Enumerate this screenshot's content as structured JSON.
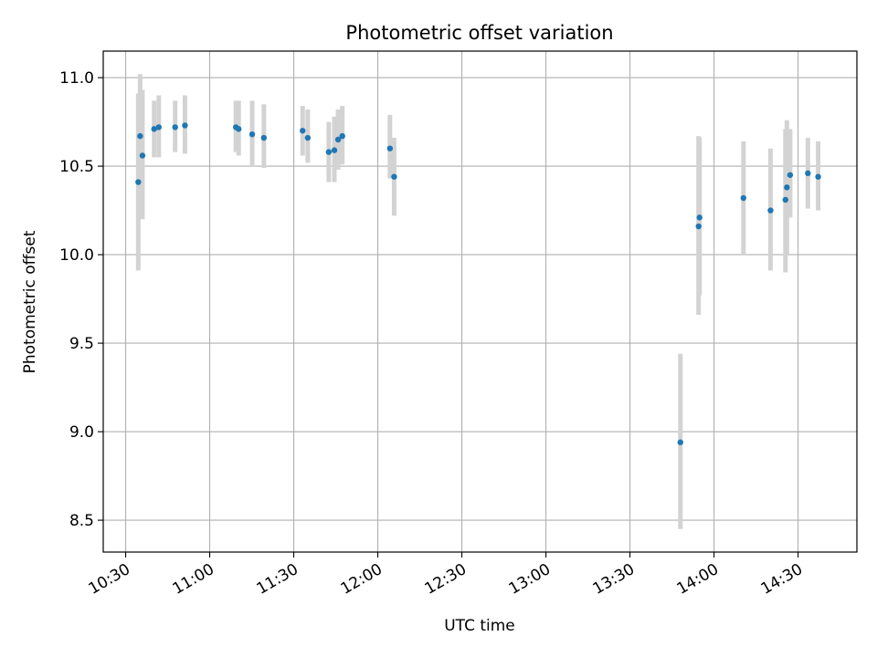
{
  "chart_data": {
    "type": "scatter",
    "title": "Photometric offset variation",
    "xlabel": "UTC time",
    "ylabel": "Photometric offset",
    "xlim": [
      "10:22",
      "14:51"
    ],
    "ylim": [
      8.32,
      11.15
    ],
    "x_ticks": [
      "10:30",
      "11:00",
      "11:30",
      "12:00",
      "12:30",
      "13:00",
      "13:30",
      "14:00",
      "14:30"
    ],
    "y_ticks": [
      8.5,
      9.0,
      9.5,
      10.0,
      10.5,
      11.0
    ],
    "grid": true,
    "marker_color": "#1f77b4",
    "errorbar_color": "#d3d3d3",
    "points": [
      {
        "t": "10:34:30",
        "y": 10.41,
        "lo": 9.91,
        "hi": 10.91
      },
      {
        "t": "10:35:10",
        "y": 10.67,
        "lo": 10.32,
        "hi": 11.02
      },
      {
        "t": "10:36:00",
        "y": 10.56,
        "lo": 10.2,
        "hi": 10.93
      },
      {
        "t": "10:40:10",
        "y": 10.71,
        "lo": 10.55,
        "hi": 10.87
      },
      {
        "t": "10:41:50",
        "y": 10.72,
        "lo": 10.55,
        "hi": 10.9
      },
      {
        "t": "10:47:40",
        "y": 10.72,
        "lo": 10.58,
        "hi": 10.87
      },
      {
        "t": "10:51:10",
        "y": 10.73,
        "lo": 10.57,
        "hi": 10.9
      },
      {
        "t": "11:09:20",
        "y": 10.72,
        "lo": 10.58,
        "hi": 10.87
      },
      {
        "t": "11:10:20",
        "y": 10.71,
        "lo": 10.56,
        "hi": 10.87
      },
      {
        "t": "11:15:10",
        "y": 10.68,
        "lo": 10.5,
        "hi": 10.87
      },
      {
        "t": "11:19:20",
        "y": 10.66,
        "lo": 10.49,
        "hi": 10.85
      },
      {
        "t": "11:33:10",
        "y": 10.7,
        "lo": 10.56,
        "hi": 10.84
      },
      {
        "t": "11:35:00",
        "y": 10.66,
        "lo": 10.52,
        "hi": 10.82
      },
      {
        "t": "11:42:30",
        "y": 10.58,
        "lo": 10.41,
        "hi": 10.75
      },
      {
        "t": "11:44:30",
        "y": 10.59,
        "lo": 10.41,
        "hi": 10.78
      },
      {
        "t": "11:45:50",
        "y": 10.65,
        "lo": 10.48,
        "hi": 10.82
      },
      {
        "t": "11:47:20",
        "y": 10.67,
        "lo": 10.51,
        "hi": 10.84
      },
      {
        "t": "12:04:20",
        "y": 10.6,
        "lo": 10.43,
        "hi": 10.79
      },
      {
        "t": "12:05:50",
        "y": 10.44,
        "lo": 10.22,
        "hi": 10.66
      },
      {
        "t": "13:48:00",
        "y": 8.94,
        "lo": 8.45,
        "hi": 9.44
      },
      {
        "t": "13:54:30",
        "y": 10.16,
        "lo": 9.66,
        "hi": 10.67
      },
      {
        "t": "13:54:50",
        "y": 10.21,
        "lo": 9.77,
        "hi": 10.66
      },
      {
        "t": "14:10:30",
        "y": 10.32,
        "lo": 10.0,
        "hi": 10.64
      },
      {
        "t": "14:20:10",
        "y": 10.25,
        "lo": 9.91,
        "hi": 10.6
      },
      {
        "t": "14:25:30",
        "y": 10.31,
        "lo": 9.9,
        "hi": 10.71
      },
      {
        "t": "14:26:00",
        "y": 10.38,
        "lo": 10.0,
        "hi": 10.76
      },
      {
        "t": "14:27:10",
        "y": 10.45,
        "lo": 10.21,
        "hi": 10.71
      },
      {
        "t": "14:33:30",
        "y": 10.46,
        "lo": 10.26,
        "hi": 10.66
      },
      {
        "t": "14:37:10",
        "y": 10.44,
        "lo": 10.25,
        "hi": 10.64
      }
    ]
  }
}
